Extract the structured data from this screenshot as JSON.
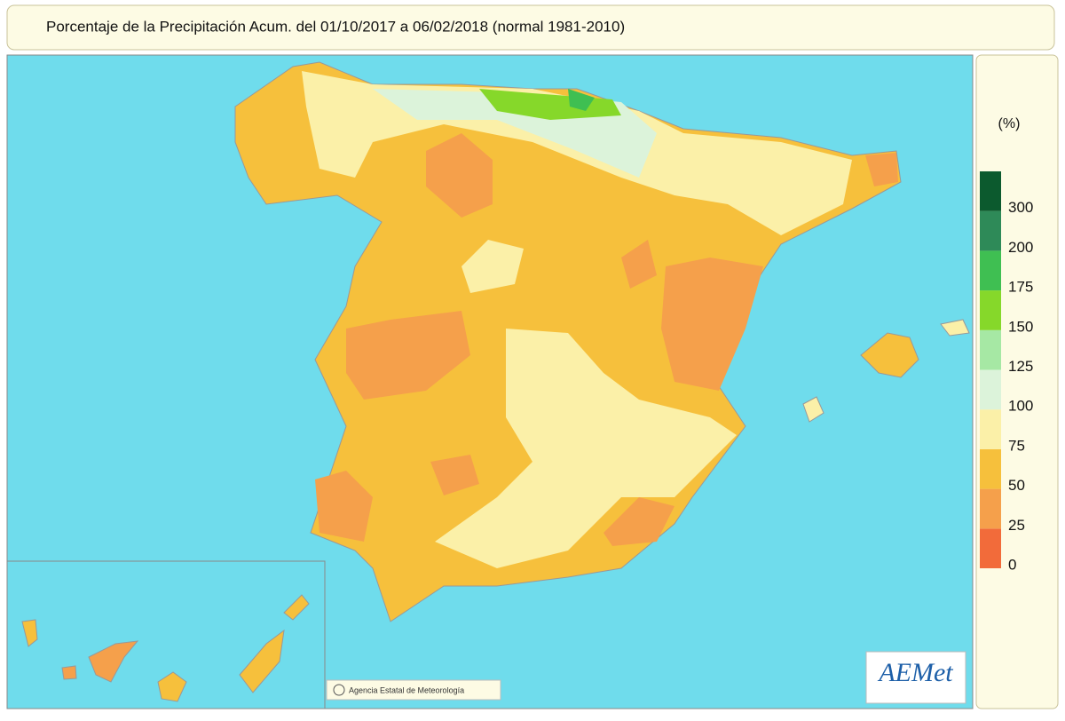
{
  "header": {
    "title": "Porcentaje de la Precipitación Acum. del 01/10/2017 a  06/02/2018  (normal 1981-2010)"
  },
  "legend": {
    "unit": "(%)",
    "ticks": [
      0,
      25,
      50,
      75,
      100,
      125,
      150,
      175,
      200,
      300
    ],
    "colors": [
      "#f26b3a",
      "#f5a04b",
      "#f6c03c",
      "#fbf0a8",
      "#dcf3da",
      "#a6e8a4",
      "#86d82a",
      "#3fbf52",
      "#2e8a58",
      "#0c5a2e"
    ]
  },
  "footer": {
    "credit": "Agencia Estatal de Meteorología",
    "logo": "AEMet"
  }
}
